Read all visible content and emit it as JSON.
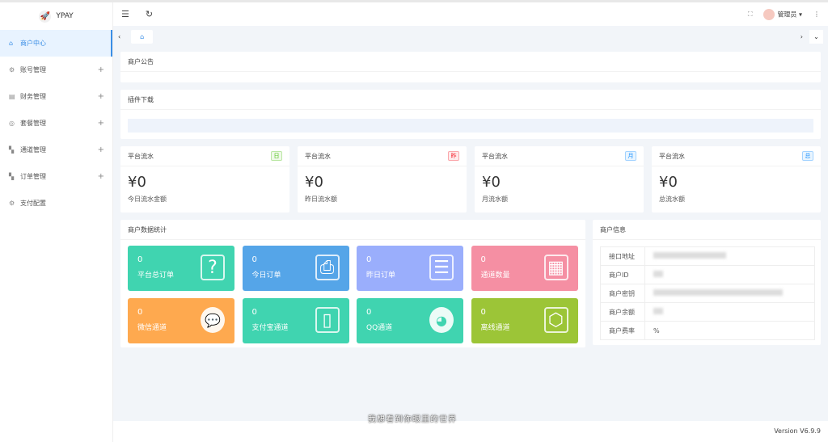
{
  "app": {
    "name": "YPAY"
  },
  "sidebar": {
    "items": [
      {
        "label": "商户中心",
        "icon": "home-icon",
        "active": true,
        "expandable": false
      },
      {
        "label": "账号管理",
        "icon": "gear-icon",
        "expandable": true
      },
      {
        "label": "财务管理",
        "icon": "finance-icon",
        "expandable": true
      },
      {
        "label": "套餐管理",
        "icon": "package-icon",
        "expandable": true
      },
      {
        "label": "通道管理",
        "icon": "grid-icon",
        "expandable": true
      },
      {
        "label": "订单管理",
        "icon": "grid-icon",
        "expandable": true
      },
      {
        "label": "支付配置",
        "icon": "gear-icon",
        "expandable": false
      }
    ]
  },
  "header": {
    "user": "管理员"
  },
  "notice": {
    "title": "商户公告"
  },
  "plugins": {
    "title": "插件下载"
  },
  "stats": [
    {
      "title": "平台流水",
      "badge": "日",
      "badge_color": "#52c41a",
      "value": "¥0",
      "label": "今日流水金额"
    },
    {
      "title": "平台流水",
      "badge": "昨",
      "badge_color": "#f5222d",
      "value": "¥0",
      "label": "昨日流水额"
    },
    {
      "title": "平台流水",
      "badge": "月",
      "badge_color": "#1890ff",
      "value": "¥0",
      "label": "月流水额"
    },
    {
      "title": "平台流水",
      "badge": "总",
      "badge_color": "#1890ff",
      "value": "¥0",
      "label": "总流水额"
    }
  ],
  "merchant_stats": {
    "title": "商户数据统计",
    "tiles": [
      {
        "value": "0",
        "label": "平台总订单",
        "color": "#40d4b0",
        "icon": "question-doc-icon",
        "glyph": "?"
      },
      {
        "value": "0",
        "label": "今日订单",
        "color": "#55a5e8",
        "icon": "printer-icon",
        "glyph": "⎙"
      },
      {
        "value": "0",
        "label": "昨日订单",
        "color": "#9aaefc",
        "icon": "document-list-icon",
        "glyph": "☰"
      },
      {
        "value": "0",
        "label": "通道数量",
        "color": "#f58fa3",
        "icon": "calendar-icon",
        "glyph": "▦"
      },
      {
        "value": "0",
        "label": "微信通道",
        "color": "#fea94f",
        "icon": "wechat-icon",
        "glyph": "💬"
      },
      {
        "value": "0",
        "label": "支付宝通道",
        "color": "#40d4b0",
        "icon": "mobile-icon",
        "glyph": "▯"
      },
      {
        "value": "0",
        "label": "QQ通道",
        "color": "#40d4b0",
        "icon": "qq-penguin-icon",
        "glyph": "◕"
      },
      {
        "value": "0",
        "label": "离线通道",
        "color": "#9cc537",
        "icon": "cube-icon",
        "glyph": "⬡"
      }
    ]
  },
  "merchant_info": {
    "title": "商户信息",
    "rows": [
      {
        "key": "接口地址",
        "value": ""
      },
      {
        "key": "商户ID",
        "value": ""
      },
      {
        "key": "商户密钥",
        "value": ""
      },
      {
        "key": "商户余额",
        "value": ""
      },
      {
        "key": "商户费率",
        "value": "%"
      }
    ]
  },
  "footer": {
    "version": "Version V6.9.9",
    "watermark": "我想看到你眼里的世界"
  }
}
